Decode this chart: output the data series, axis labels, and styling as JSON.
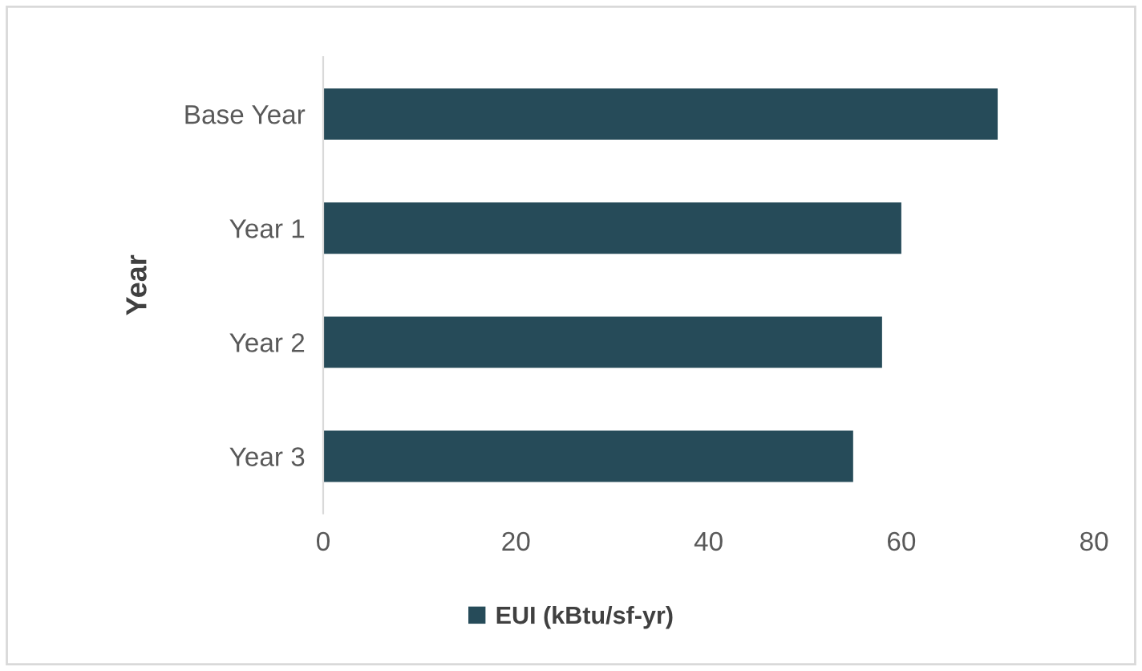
{
  "chart_data": {
    "type": "bar",
    "orientation": "horizontal",
    "ylabel": "Year",
    "categories": [
      "Base Year",
      "Year 1",
      "Year 2",
      "Year 3"
    ],
    "series": [
      {
        "name": "EUI (kBtu/sf-yr)",
        "color": "#264b59",
        "values": [
          70,
          60,
          58,
          55
        ]
      }
    ],
    "xlim": [
      0,
      80
    ],
    "xticks": [
      0,
      20,
      40,
      60,
      80
    ],
    "grid": false,
    "legend": "bottom"
  }
}
